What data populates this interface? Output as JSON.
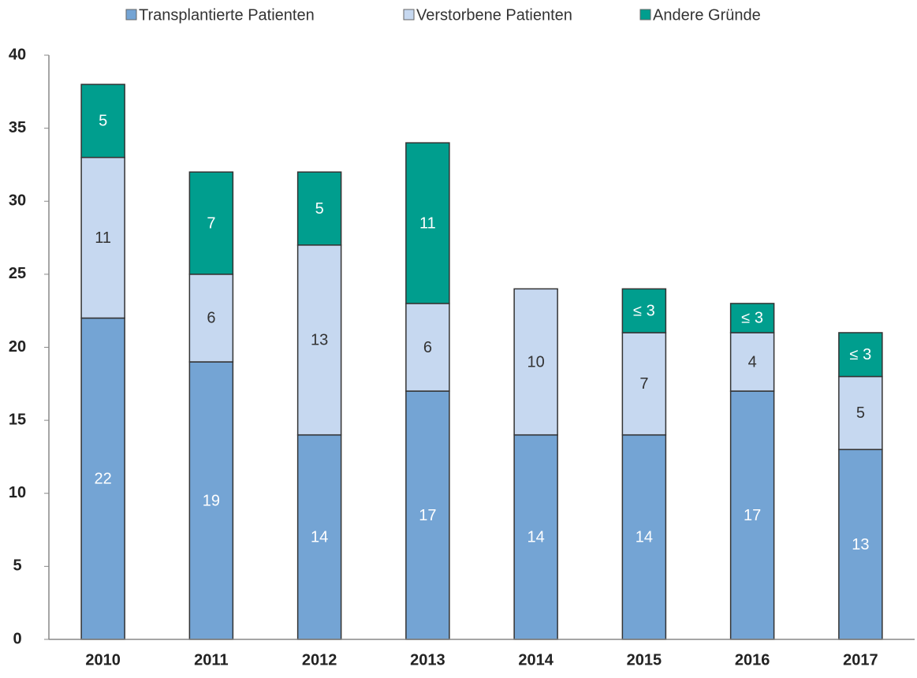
{
  "chart_data": {
    "type": "stacked_bar",
    "categories": [
      "2010",
      "2011",
      "2012",
      "2013",
      "2014",
      "2015",
      "2016",
      "2017"
    ],
    "series": [
      {
        "name": "Transplantierte Patienten",
        "color": "#74a4d4",
        "values": [
          22,
          19,
          14,
          17,
          14,
          14,
          17,
          13
        ]
      },
      {
        "name": "Verstorbene Patienten",
        "color": "#c6d8f0",
        "values": [
          11,
          6,
          13,
          6,
          10,
          7,
          4,
          5
        ]
      },
      {
        "name": "Andere Gründe",
        "color": "#009e8e",
        "values": [
          5,
          7,
          5,
          11,
          null,
          3,
          2,
          3
        ],
        "value_labels": [
          "5",
          "7",
          "5",
          "11",
          null,
          "≤ 3",
          "≤ 3",
          "≤ 3"
        ]
      }
    ],
    "ylim": [
      0,
      40
    ],
    "yticks": [
      0,
      5,
      10,
      15,
      20,
      25,
      30,
      35,
      40
    ],
    "legend": "top"
  }
}
